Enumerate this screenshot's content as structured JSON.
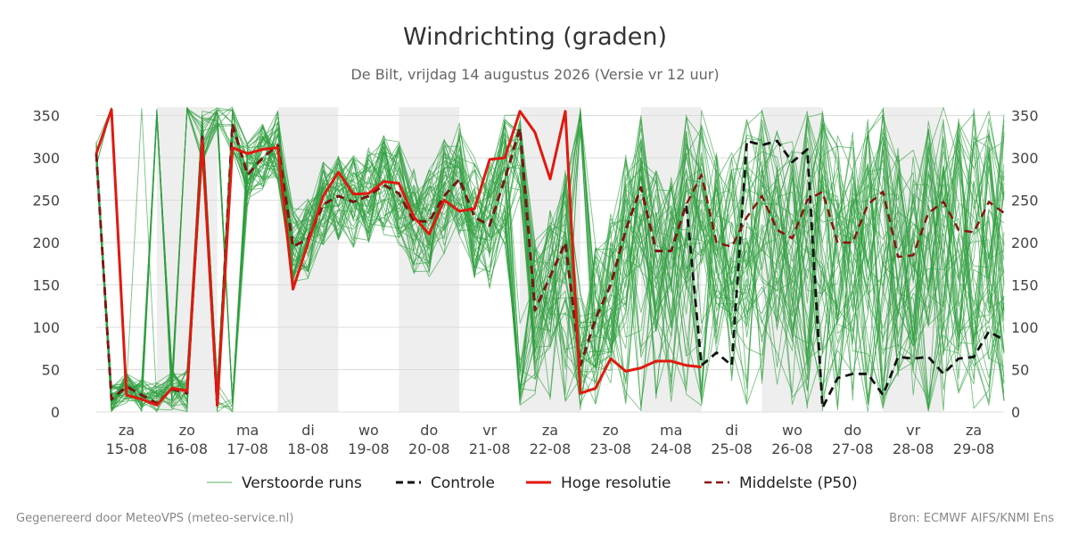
{
  "chart_data": {
    "type": "line",
    "title": "Windrichting (graden)",
    "subtitle": "De Bilt, vrijdag 14 augustus 2026 (Versie vr 12 uur)",
    "xlabel": "",
    "ylabel": "",
    "ylim": [
      0,
      360
    ],
    "yticks": [
      0,
      50,
      100,
      150,
      200,
      250,
      300,
      350
    ],
    "x_range_days": [
      14.5,
      29.5
    ],
    "x_ticks": [
      {
        "day": "za",
        "date": "15-08",
        "pos": 15
      },
      {
        "day": "zo",
        "date": "16-08",
        "pos": 16
      },
      {
        "day": "ma",
        "date": "17-08",
        "pos": 17
      },
      {
        "day": "di",
        "date": "18-08",
        "pos": 18
      },
      {
        "day": "wo",
        "date": "19-08",
        "pos": 19
      },
      {
        "day": "do",
        "date": "20-08",
        "pos": 20
      },
      {
        "day": "vr",
        "date": "21-08",
        "pos": 21
      },
      {
        "day": "za",
        "date": "22-08",
        "pos": 22
      },
      {
        "day": "zo",
        "date": "23-08",
        "pos": 23
      },
      {
        "day": "ma",
        "date": "24-08",
        "pos": 24
      },
      {
        "day": "di",
        "date": "25-08",
        "pos": 25
      },
      {
        "day": "wo",
        "date": "26-08",
        "pos": 26
      },
      {
        "day": "do",
        "date": "27-08",
        "pos": 27
      },
      {
        "day": "vr",
        "date": "28-08",
        "pos": 28
      },
      {
        "day": "za",
        "date": "29-08",
        "pos": 29
      }
    ],
    "shaded_bands": [
      [
        15.5,
        16.5
      ],
      [
        17.5,
        18.5
      ],
      [
        19.5,
        20.5
      ],
      [
        21.5,
        22.5
      ],
      [
        23.5,
        24.5
      ],
      [
        25.5,
        26.5
      ],
      [
        27.5,
        28.5
      ],
      [
        29.5,
        29.7
      ]
    ],
    "grid": true,
    "legend_position": "bottom",
    "legend": [
      {
        "key": "ensemble",
        "label": "Verstoorde runs"
      },
      {
        "key": "control",
        "label": "Controle"
      },
      {
        "key": "hires",
        "label": "Hoge resolutie"
      },
      {
        "key": "p50",
        "label": "Middelste (P50)"
      }
    ],
    "series": {
      "control": {
        "color": "#111111",
        "dash": "dashed",
        "x": [
          14.5,
          14.75,
          15.0,
          15.25,
          15.5,
          15.75,
          16.0,
          16.25,
          16.5,
          16.75,
          17.0,
          17.25,
          17.5,
          17.75,
          18.0,
          18.25,
          18.5,
          18.75,
          19.0,
          19.25,
          19.5,
          19.75,
          20.0,
          20.25,
          20.5,
          20.75,
          21.0,
          21.25,
          21.5,
          21.75,
          22.0,
          22.25,
          22.5,
          22.75,
          23.0,
          23.25,
          23.5,
          23.75,
          24.0,
          24.25,
          24.5,
          24.75,
          25.0,
          25.25,
          25.5,
          25.75,
          26.0,
          26.25,
          26.5,
          26.75,
          27.0,
          27.25,
          27.5,
          27.75,
          28.0,
          28.25,
          28.5,
          28.75,
          29.0,
          29.25,
          29.5
        ],
        "y": [
          305,
          15,
          30,
          20,
          10,
          27,
          22,
          325,
          5,
          340,
          280,
          300,
          315,
          195,
          205,
          245,
          255,
          248,
          255,
          268,
          258,
          225,
          225,
          255,
          275,
          230,
          220,
          275,
          335,
          120,
          160,
          200,
          55,
          110,
          150,
          215,
          265,
          190,
          190,
          245,
          55,
          70,
          55,
          320,
          315,
          320,
          295,
          310,
          5,
          40,
          45,
          45,
          20,
          65,
          63,
          65,
          45,
          63,
          65,
          95,
          85
        ]
      },
      "hires": {
        "color": "#e0190f",
        "x": [
          14.5,
          14.75,
          15.0,
          15.25,
          15.5,
          15.75,
          16.0,
          16.25,
          16.5,
          16.75,
          17.0,
          17.25,
          17.5,
          17.75,
          18.0,
          18.25,
          18.5,
          18.75,
          19.0,
          19.25,
          19.5,
          19.75,
          20.0,
          20.25,
          20.5,
          20.75,
          21.0,
          21.25,
          21.5,
          21.75,
          22.0,
          22.25,
          22.5,
          22.75,
          23.0,
          23.25,
          23.5,
          23.75,
          24.0,
          24.25,
          24.5
        ],
        "y": [
          305,
          357,
          20,
          15,
          8,
          28,
          25,
          320,
          8,
          312,
          305,
          310,
          312,
          145,
          200,
          255,
          283,
          257,
          258,
          272,
          270,
          230,
          210,
          250,
          237,
          240,
          298,
          300,
          355,
          330,
          275,
          355,
          22,
          28,
          63,
          48,
          52,
          60,
          60,
          55,
          53
        ]
      },
      "p50": {
        "color": "#8b1010",
        "dash": "dashed",
        "x": [
          14.5,
          14.75,
          15.0,
          15.25,
          15.5,
          15.75,
          16.0,
          16.25,
          16.5,
          16.75,
          17.0,
          17.25,
          17.5,
          17.75,
          18.0,
          18.25,
          18.5,
          18.75,
          19.0,
          19.25,
          19.5,
          19.75,
          20.0,
          20.25,
          20.5,
          20.75,
          21.0,
          21.25,
          21.5,
          21.75,
          22.0,
          22.25,
          22.5,
          22.75,
          23.0,
          23.25,
          23.5,
          23.75,
          24.0,
          24.25,
          24.5,
          24.75,
          25.0,
          25.25,
          25.5,
          25.75,
          26.0,
          26.25,
          26.5,
          26.75,
          27.0,
          27.25,
          27.5,
          27.75,
          28.0,
          28.25,
          28.5,
          28.75,
          29.0,
          29.25,
          29.5
        ],
        "y": [
          305,
          15,
          30,
          20,
          10,
          27,
          22,
          325,
          5,
          340,
          280,
          300,
          315,
          195,
          205,
          245,
          255,
          248,
          255,
          268,
          258,
          225,
          225,
          255,
          275,
          230,
          220,
          275,
          335,
          120,
          160,
          200,
          55,
          110,
          150,
          215,
          265,
          190,
          190,
          245,
          280,
          200,
          195,
          230,
          255,
          215,
          205,
          250,
          260,
          200,
          200,
          245,
          260,
          183,
          185,
          235,
          248,
          215,
          212,
          248,
          235
        ]
      }
    }
  },
  "footer": {
    "left": "Gegenereerd door MeteoVPS (meteo-service.nl)",
    "right": "Bron: ECMWF AIFS/KNMI Ens"
  },
  "colors": {
    "ensemble": "#2e9e3e",
    "shade": "#eeeeee",
    "grid": "#dcdcdc"
  }
}
